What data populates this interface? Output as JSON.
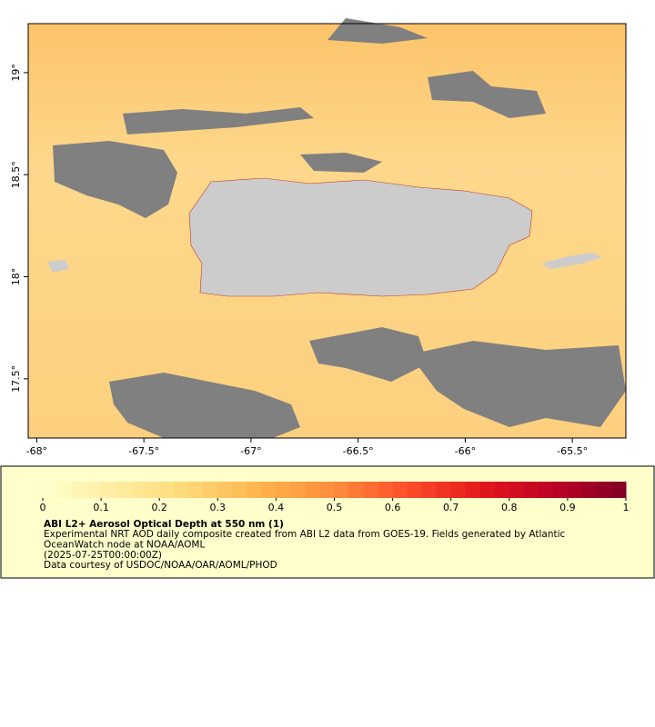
{
  "map": {
    "xlim": [
      -68.04,
      -65.25
    ],
    "ylim": [
      17.21,
      19.24
    ],
    "xticks": [
      {
        "value": -68,
        "label": "-68°"
      },
      {
        "value": -67.5,
        "label": "-67.5°"
      },
      {
        "value": -67,
        "label": "-67°"
      },
      {
        "value": -66.5,
        "label": "-66.5°"
      },
      {
        "value": -66,
        "label": "-66°"
      },
      {
        "value": -65.5,
        "label": "-65.5°"
      }
    ],
    "yticks": [
      {
        "value": 19,
        "label": "19°"
      },
      {
        "value": 18.5,
        "label": "18.5°"
      },
      {
        "value": 18,
        "label": "18°"
      },
      {
        "value": 17.5,
        "label": "17.5°"
      }
    ],
    "colorbar": {
      "range": [
        0,
        1
      ],
      "ticks": [
        0,
        0.1,
        0.2,
        0.3,
        0.4,
        0.5,
        0.6,
        0.7,
        0.8,
        0.9,
        1
      ],
      "colors": [
        "#ffffcc",
        "#ffeda0",
        "#fed976",
        "#feb24c",
        "#fd8d3c",
        "#fc4e2a",
        "#e31a1c",
        "#bd0026",
        "#800026"
      ]
    },
    "legend": {
      "title": "ABI L2+ Aerosol Optical Depth at 550 nm (1)",
      "lines": [
        "Experimental NRT AOD daily composite created from ABI L2 data from GOES-19. Fields generated by Atlantic",
        "OceanWatch node at NOAA/AOML",
        "(2025-07-25T00:00:00Z)",
        "Data courtesy of USDOC/NOAA/OAR/AOML/PHOD"
      ]
    }
  }
}
